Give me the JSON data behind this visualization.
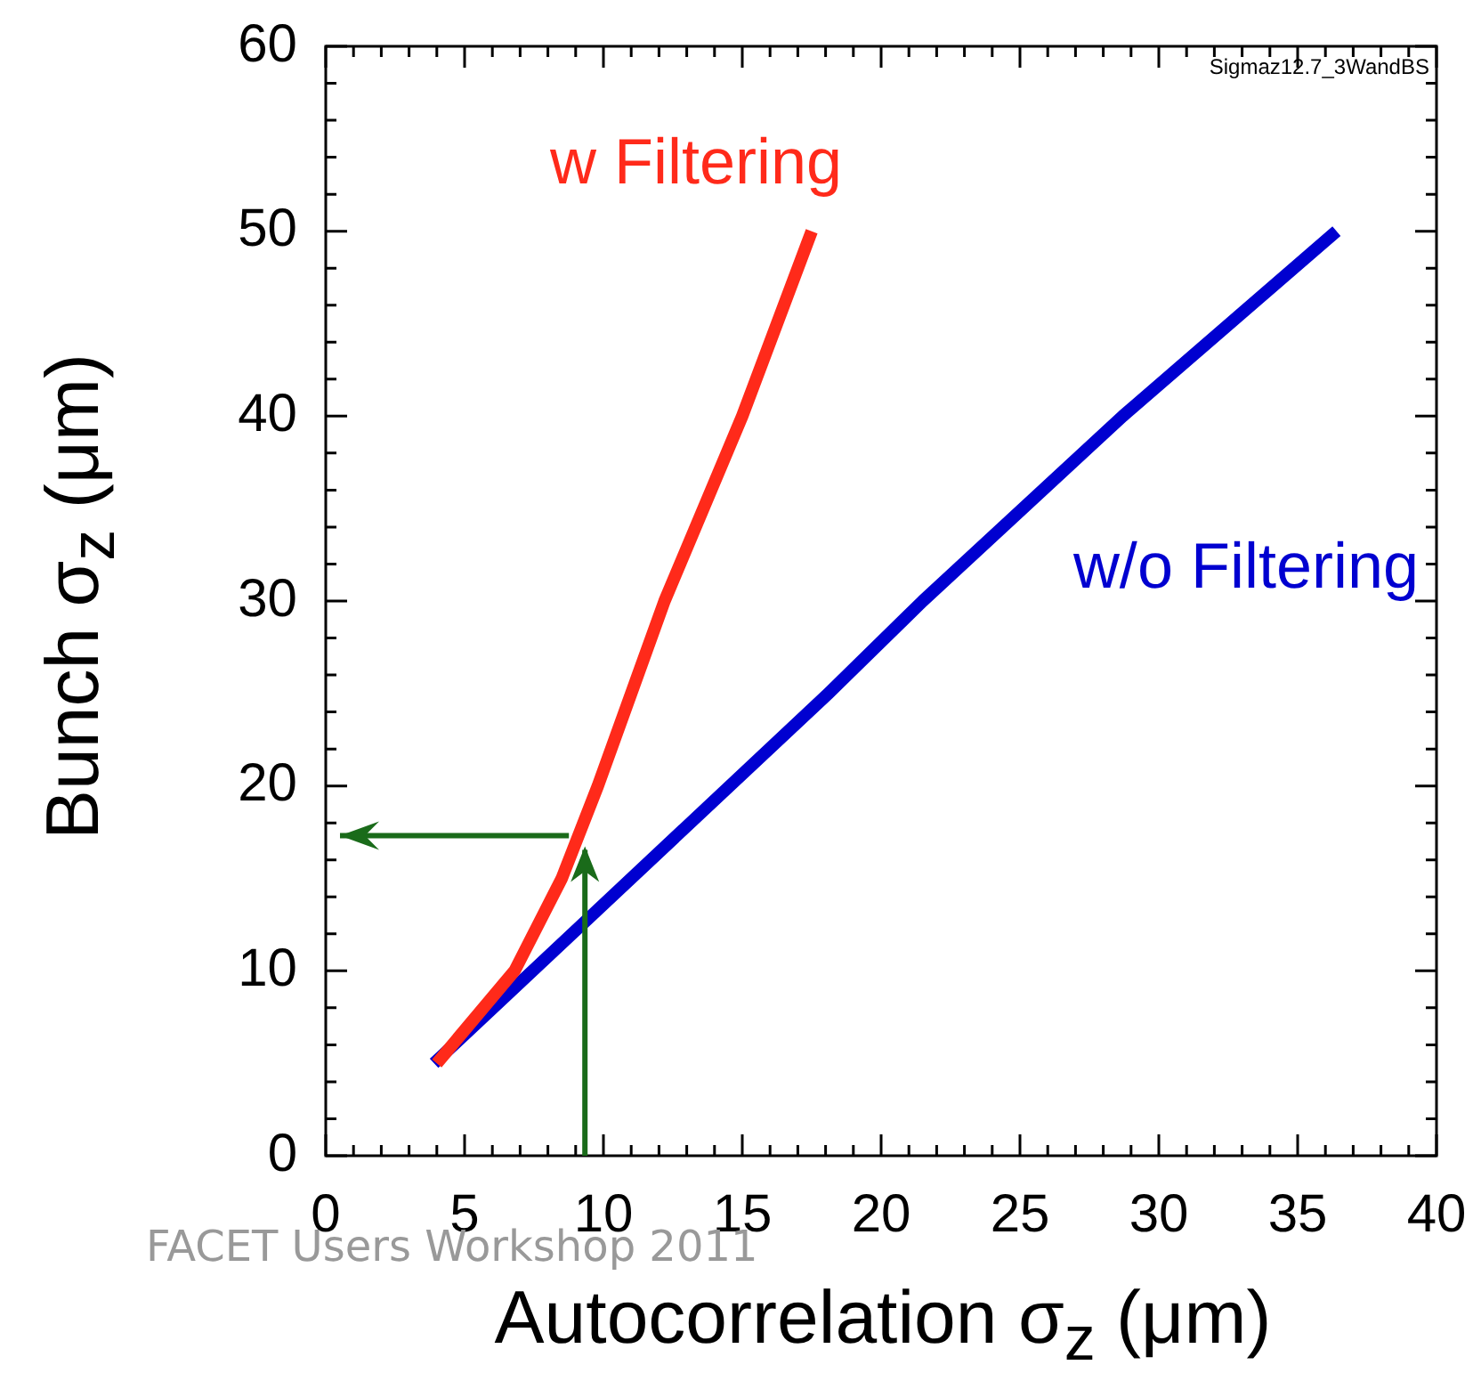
{
  "chart_data": {
    "type": "line",
    "xlabel": "Autocorrelation σ$_{z}$ (μm)",
    "ylabel": "Bunch σ$_{z}$ (μm)",
    "annotations": [
      "Sigmaz12.7_3WandBS",
      "FACET Users Workshop 2011"
    ],
    "xlim": [
      0,
      40
    ],
    "xticks": [
      0,
      5,
      10,
      15,
      20,
      25,
      30,
      35,
      40
    ],
    "ylim": [
      0,
      60
    ],
    "yticks": [
      0,
      10,
      20,
      30,
      40,
      50,
      60
    ],
    "grid": false,
    "legend": false,
    "marker": "none",
    "line_style": "solid",
    "series": [
      {
        "name": "w Filtering",
        "color": "#ff2a1a",
        "x": [
          4.0,
          6.8,
          8.5,
          9.8,
          12.2,
          15.0,
          17.5
        ],
        "values": [
          5,
          10,
          15,
          20,
          30,
          40,
          50
        ]
      },
      {
        "name": "w/o Filtering",
        "color": "#0000d0",
        "x": [
          3.9,
          18.1,
          21.5,
          28.7,
          36.4
        ],
        "values": [
          5,
          25,
          30,
          40,
          50
        ]
      }
    ]
  }
}
